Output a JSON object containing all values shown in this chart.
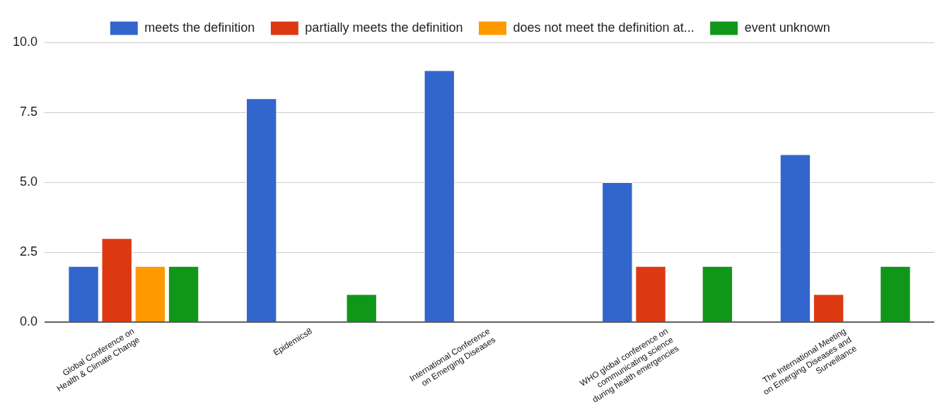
{
  "chart_data": {
    "type": "bar",
    "categories": [
      "Global Conference on Health & Climate Change",
      "Epidemics8",
      "International Conference on Emerging Diseases",
      "WHO global conference on communicating science during health emergencies",
      "The International Meeting on Emerging Diseases and Surveillance"
    ],
    "series": [
      {
        "name": "meets the definition",
        "color": "#3366cc",
        "values": [
          2,
          8,
          9,
          5,
          6
        ]
      },
      {
        "name": "partially meets the definition",
        "color": "#dc3912",
        "values": [
          3,
          0,
          0,
          2,
          1
        ]
      },
      {
        "name": "does not meet the definition at...",
        "color": "#ff9900",
        "values": [
          2,
          0,
          0,
          0,
          0
        ]
      },
      {
        "name": "event unknown",
        "color": "#109618",
        "values": [
          2,
          1,
          0,
          2,
          2
        ]
      }
    ],
    "ylim": [
      0,
      10
    ],
    "yticks": [
      {
        "value": 0,
        "label": "0.0"
      },
      {
        "value": 2.5,
        "label": "2.5"
      },
      {
        "value": 5,
        "label": "5.0"
      },
      {
        "value": 7.5,
        "label": "7.5"
      },
      {
        "value": 10,
        "label": "10.0"
      }
    ],
    "grid": "y",
    "legend": "top"
  }
}
